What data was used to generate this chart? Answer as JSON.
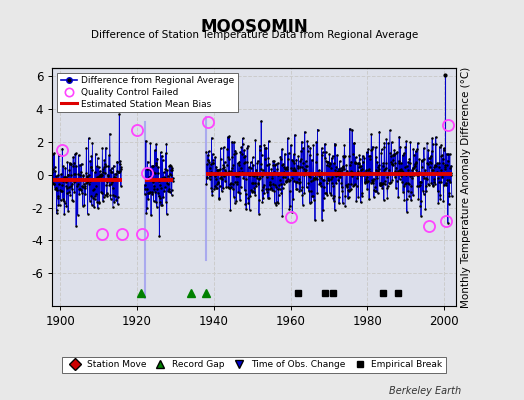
{
  "title": "MOOSOMIN",
  "subtitle": "Difference of Station Temperature Data from Regional Average",
  "ylabel": "Monthly Temperature Anomaly Difference (°C)",
  "xlim": [
    1898,
    2003
  ],
  "ylim": [
    -8,
    6.5
  ],
  "yticks": [
    -6,
    -4,
    -2,
    0,
    2,
    4,
    6
  ],
  "xticks": [
    1900,
    1920,
    1940,
    1960,
    1980,
    2000
  ],
  "figure_bg": "#e8e8e8",
  "plot_bg": "#dde0ea",
  "line_color": "#0000cc",
  "dot_color": "#000000",
  "bias_color": "#dd0000",
  "qc_edge_color": "#ff44ff",
  "seed": 42,
  "segments": [
    {
      "start": 1898.0,
      "end": 1916.0,
      "bias": -0.35
    },
    {
      "start": 1922.0,
      "end": 1929.5,
      "bias": -0.35
    },
    {
      "start": 1938.0,
      "end": 2002.0,
      "bias": 0.05
    }
  ],
  "gap_vlines": [
    {
      "x": 1922,
      "ymin": -7.5,
      "ymax": 3.2
    },
    {
      "x": 1938,
      "ymin": -5.2,
      "ymax": 3.5
    }
  ],
  "record_gaps": [
    1921,
    1934,
    1938
  ],
  "empirical_breaks": [
    1962,
    1969,
    1971,
    1984,
    1988
  ],
  "qc_failed": [
    [
      1900.5,
      1.5
    ],
    [
      1911,
      -3.6
    ],
    [
      1916,
      -3.6
    ],
    [
      1920,
      2.7
    ],
    [
      1921.2,
      -3.6
    ],
    [
      1922.5,
      0.1
    ],
    [
      1938.5,
      3.2
    ],
    [
      1960,
      -2.6
    ],
    [
      1996,
      -3.1
    ],
    [
      2000.5,
      -2.8
    ],
    [
      2001,
      3.0
    ]
  ],
  "spike_up": [
    [
      2000.2,
      6.1
    ]
  ],
  "spike_down": [
    [
      1938.1,
      -5.0
    ]
  ],
  "berkeley_earth_text": "Berkeley Earth",
  "std_dev": 1.05
}
